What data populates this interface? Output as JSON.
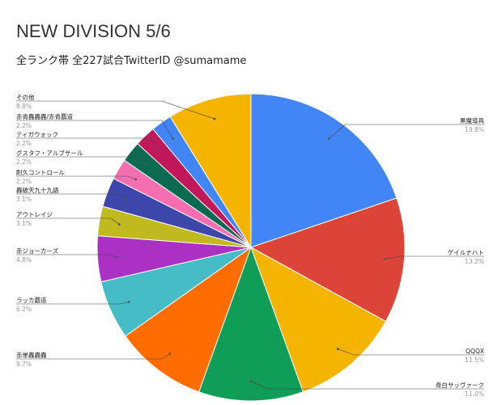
{
  "chart_data": {
    "type": "pie",
    "title": "NEW DIVISION 5/6",
    "subtitle": "全ランク帯 全227試合TwitterID @sumamame",
    "slices": [
      {
        "label": "黒魔導具",
        "percent_label": "19.8%",
        "value": 19.8,
        "color": "#4285F4"
      },
      {
        "label": "ゲイルナハト",
        "percent_label": "13.2%",
        "value": 13.2,
        "color": "#DB4437"
      },
      {
        "label": "QQQX",
        "percent_label": "11.5%",
        "value": 11.5,
        "color": "#F4B400"
      },
      {
        "label": "青白サッヴァーク",
        "percent_label": "11.0%",
        "value": 11.0,
        "color": "#0F9D58"
      },
      {
        "label": "赤単轟轟轟",
        "percent_label": "9.7%",
        "value": 9.7,
        "color": "#FF6D00"
      },
      {
        "label": "ラッカ覇道",
        "percent_label": "6.2%",
        "value": 6.2,
        "color": "#46BDC6"
      },
      {
        "label": "赤ジョーカーズ",
        "percent_label": "4.8%",
        "value": 4.8,
        "color": "#AB30C4"
      },
      {
        "label": "アウトレイジ",
        "percent_label": "3.1%",
        "value": 3.1,
        "color": "#C0B920"
      },
      {
        "label": "轟破天九十九語",
        "percent_label": "3.1%",
        "value": 3.1,
        "color": "#3C46AB"
      },
      {
        "label": "耐久コントロール",
        "percent_label": "2.2%",
        "value": 2.2,
        "color": "#F46EB0"
      },
      {
        "label": "グスタフ・アルブサール",
        "percent_label": "2.2%",
        "value": 2.2,
        "color": "#0B6B51"
      },
      {
        "label": "ティガウォック",
        "percent_label": "2.2%",
        "value": 2.2,
        "color": "#C2185B"
      },
      {
        "label": "赤青轟轟轟/赤青覇道",
        "percent_label": "2.2%",
        "value": 2.2,
        "color": "#4285F4"
      },
      {
        "label": "その他",
        "percent_label": "8.8%",
        "value": 8.8,
        "color": "#F4B400"
      }
    ]
  }
}
